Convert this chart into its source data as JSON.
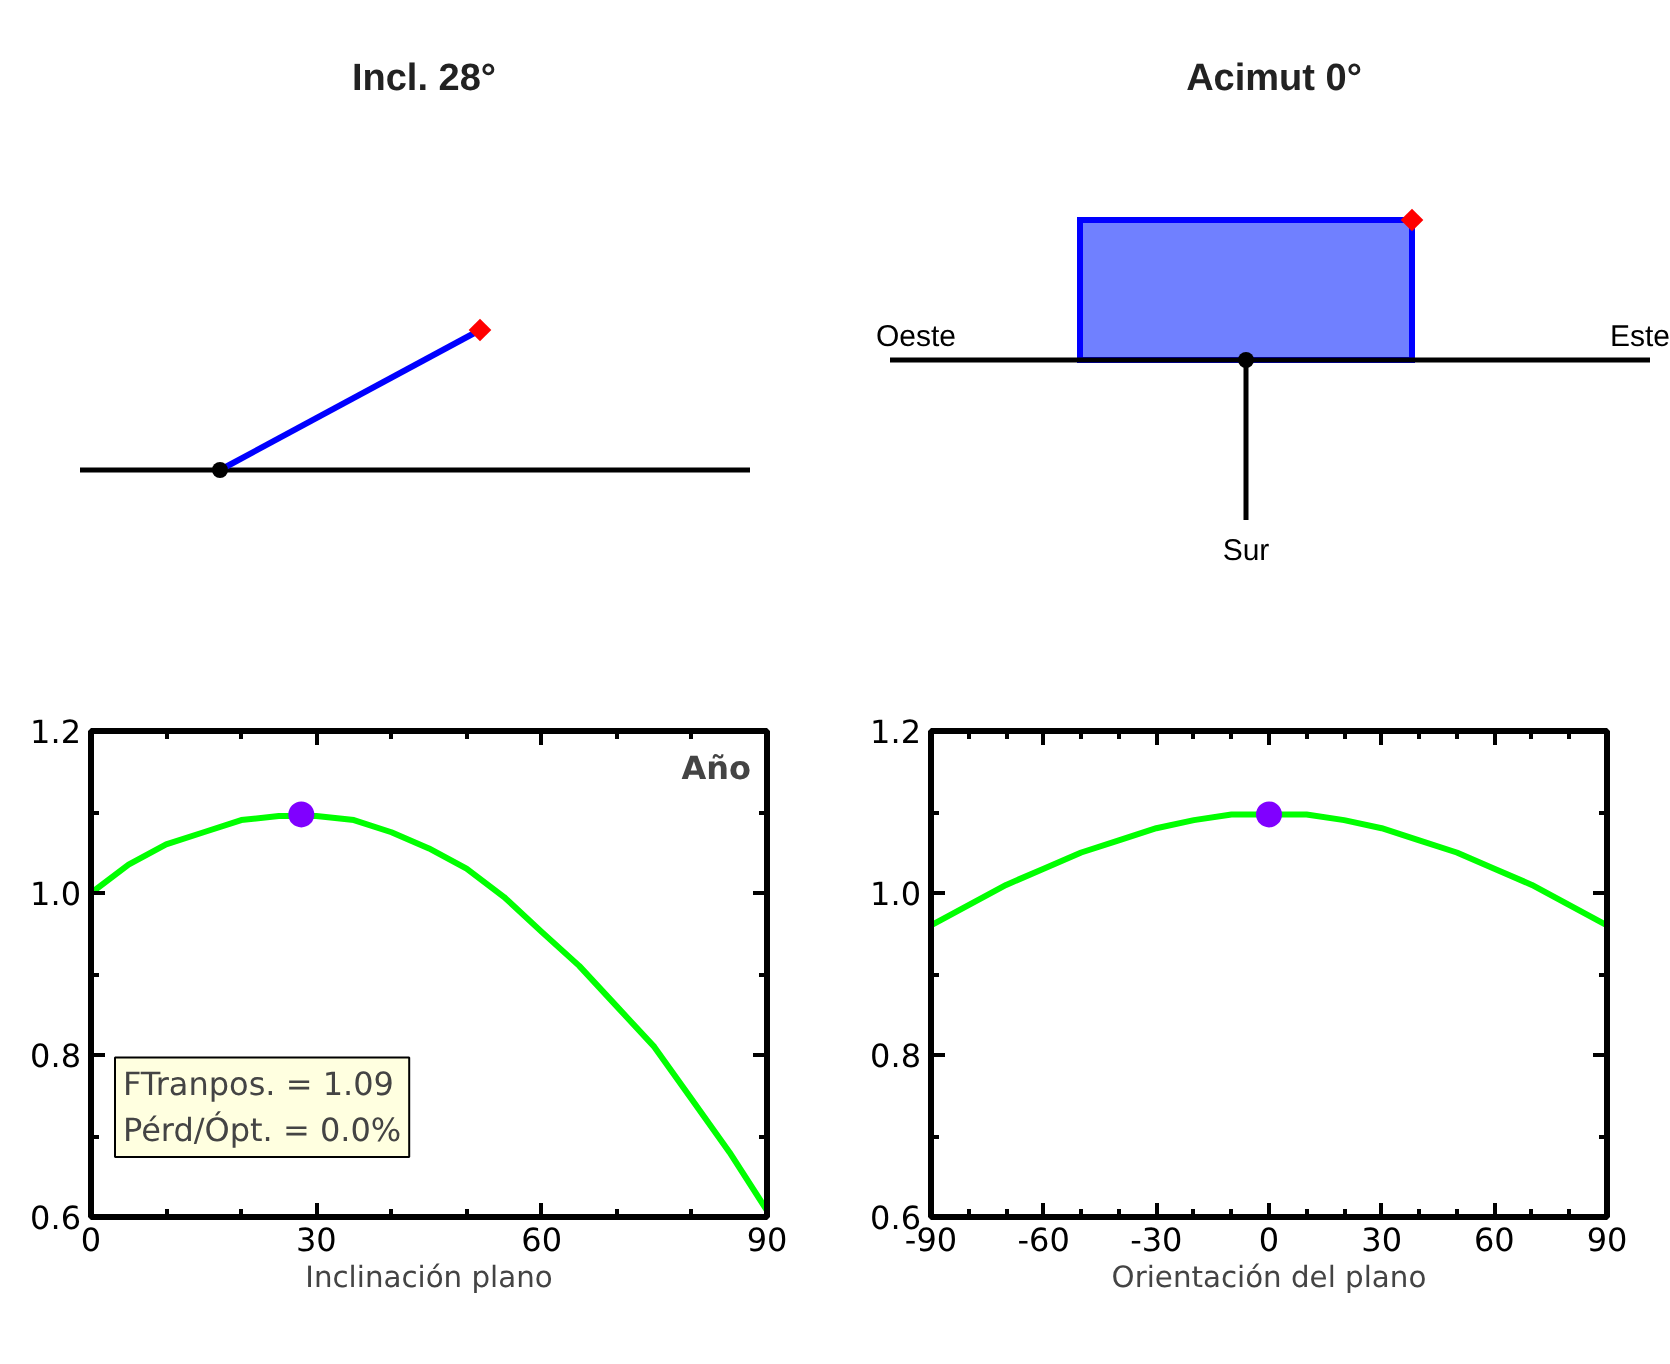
{
  "chart_data": [
    {
      "type": "other",
      "title": "Incl. 28°"
    },
    {
      "type": "other",
      "title": "Acimut 0°",
      "annotations": [
        "Oeste",
        "Este",
        "Sur"
      ]
    },
    {
      "type": "line",
      "xlabel": "Inclinación plano",
      "xlim": [
        0,
        90
      ],
      "ylim": [
        0.6,
        1.2
      ],
      "xticks": [
        0,
        30,
        60,
        90
      ],
      "yticks": [
        0.6,
        0.8,
        {
          "value": 1.0,
          "label": "1.0"
        },
        1.2
      ],
      "grid": false,
      "line_style": "solid",
      "annotations": [
        "Año",
        "FTranpos. = 1.09",
        "Pérd/Ópt. = 0.0%"
      ],
      "series": [
        {
          "color": "#00ff00",
          "x": [
            0,
            5,
            10,
            15,
            20,
            25,
            30,
            35,
            40,
            45,
            50,
            55,
            60,
            65,
            70,
            75,
            80,
            85,
            90
          ],
          "values": [
            1.0,
            1.035,
            1.06,
            1.075,
            1.09,
            1.095,
            1.095,
            1.09,
            1.075,
            1.055,
            1.03,
            0.995,
            0.952,
            0.91,
            0.86,
            0.81,
            0.745,
            0.68,
            0.608
          ]
        },
        {
          "type": "scatter",
          "marker": "circle",
          "color": "#8000ff",
          "x": [
            28
          ],
          "values": [
            1.097
          ]
        }
      ]
    },
    {
      "type": "line",
      "xlabel": "Orientación del plano",
      "xlim": [
        -90,
        90
      ],
      "ylim": [
        0.6,
        1.2
      ],
      "xticks": [
        -90,
        -60,
        -30,
        0,
        30,
        60,
        90
      ],
      "yticks": [
        0.6,
        0.8,
        {
          "value": 1.0,
          "label": "1.0"
        },
        1.2
      ],
      "grid": false,
      "line_style": "solid",
      "series": [
        {
          "color": "#00ff00",
          "x": [
            -90,
            -80,
            -70,
            -60,
            -50,
            -40,
            -30,
            -20,
            -10,
            10,
            20,
            30,
            40,
            50,
            60,
            70,
            80,
            90
          ],
          "values": [
            0.96,
            0.985,
            1.01,
            1.03,
            1.05,
            1.065,
            1.08,
            1.09,
            1.097,
            1.097,
            1.09,
            1.08,
            1.065,
            1.05,
            1.03,
            1.01,
            0.985,
            0.96
          ]
        },
        {
          "type": "scatter",
          "marker": "circle",
          "color": "#8000ff",
          "x": [
            0
          ],
          "values": [
            1.097
          ]
        }
      ]
    }
  ]
}
